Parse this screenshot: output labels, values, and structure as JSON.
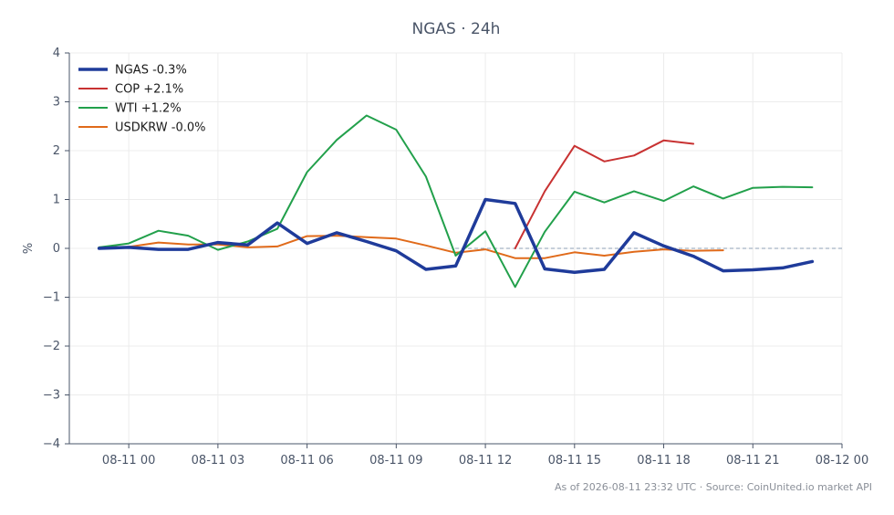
{
  "chart_data": {
    "type": "line",
    "title": "NGAS · 24h",
    "xlabel": "",
    "ylabel": "%",
    "ylim": [
      -4,
      4
    ],
    "yticks": [
      "4",
      "3",
      "2",
      "1",
      "0",
      "−1",
      "−2",
      "−3",
      "−4"
    ],
    "xticks": [
      "08-11 00",
      "08-11 03",
      "08-11 06",
      "08-11 09",
      "08-11 12",
      "08-11 15",
      "08-11 18",
      "08-11 21",
      "08-12 00"
    ],
    "xrange_hours": [
      -2,
      24
    ],
    "grid": true,
    "zero_line": true,
    "legend_position": "top-left",
    "series": [
      {
        "name": "NGAS -0.3%",
        "color": "#1f3b9a",
        "hours": [
          -1,
          0,
          1,
          2,
          3,
          4,
          5,
          6,
          7,
          8,
          9,
          10,
          11,
          12,
          13,
          14,
          15,
          16,
          17,
          18,
          19,
          20,
          21,
          22,
          23
        ],
        "values": [
          0.0,
          0.02,
          -0.02,
          -0.02,
          0.12,
          0.07,
          0.52,
          0.1,
          0.32,
          0.14,
          -0.05,
          -0.43,
          -0.36,
          1.0,
          0.92,
          -0.42,
          -0.49,
          -0.43,
          0.32,
          0.05,
          -0.16,
          -0.46,
          -0.44,
          -0.4,
          -0.27
        ]
      },
      {
        "name": "COP +2.1%",
        "color": "#c83232",
        "hours": [
          13,
          14,
          15,
          16,
          17,
          18,
          19
        ],
        "values": [
          0.0,
          1.17,
          2.1,
          1.78,
          1.9,
          2.21,
          2.14
        ]
      },
      {
        "name": "WTI +1.2%",
        "color": "#22a04b",
        "hours": [
          -1,
          0,
          1,
          2,
          3,
          4,
          5,
          6,
          7,
          8,
          9,
          10,
          11,
          12,
          13,
          14,
          15,
          16,
          17,
          18,
          19,
          20,
          21,
          22,
          23
        ],
        "values": [
          0.02,
          0.1,
          0.36,
          0.26,
          -0.03,
          0.14,
          0.4,
          1.56,
          2.22,
          2.72,
          2.43,
          1.47,
          -0.15,
          0.35,
          -0.79,
          0.34,
          1.16,
          0.94,
          1.17,
          0.97,
          1.27,
          1.02,
          1.24,
          1.26,
          1.25
        ]
      },
      {
        "name": "USDKRW -0.0%",
        "color": "#e06a1a",
        "hours": [
          -1,
          0,
          1,
          2,
          3,
          4,
          5,
          6,
          7,
          8,
          9,
          10,
          11,
          12,
          13,
          14,
          15,
          16,
          17,
          18,
          19,
          20
        ],
        "values": [
          0.02,
          0.03,
          0.12,
          0.08,
          0.08,
          0.02,
          0.04,
          0.25,
          0.26,
          0.23,
          0.2,
          0.06,
          -0.09,
          -0.02,
          -0.2,
          -0.2,
          -0.08,
          -0.15,
          -0.07,
          -0.02,
          -0.05,
          -0.04
        ]
      }
    ]
  },
  "footer": "As of 2026-08-11 23:32 UTC · Source: CoinUnited.io market API"
}
